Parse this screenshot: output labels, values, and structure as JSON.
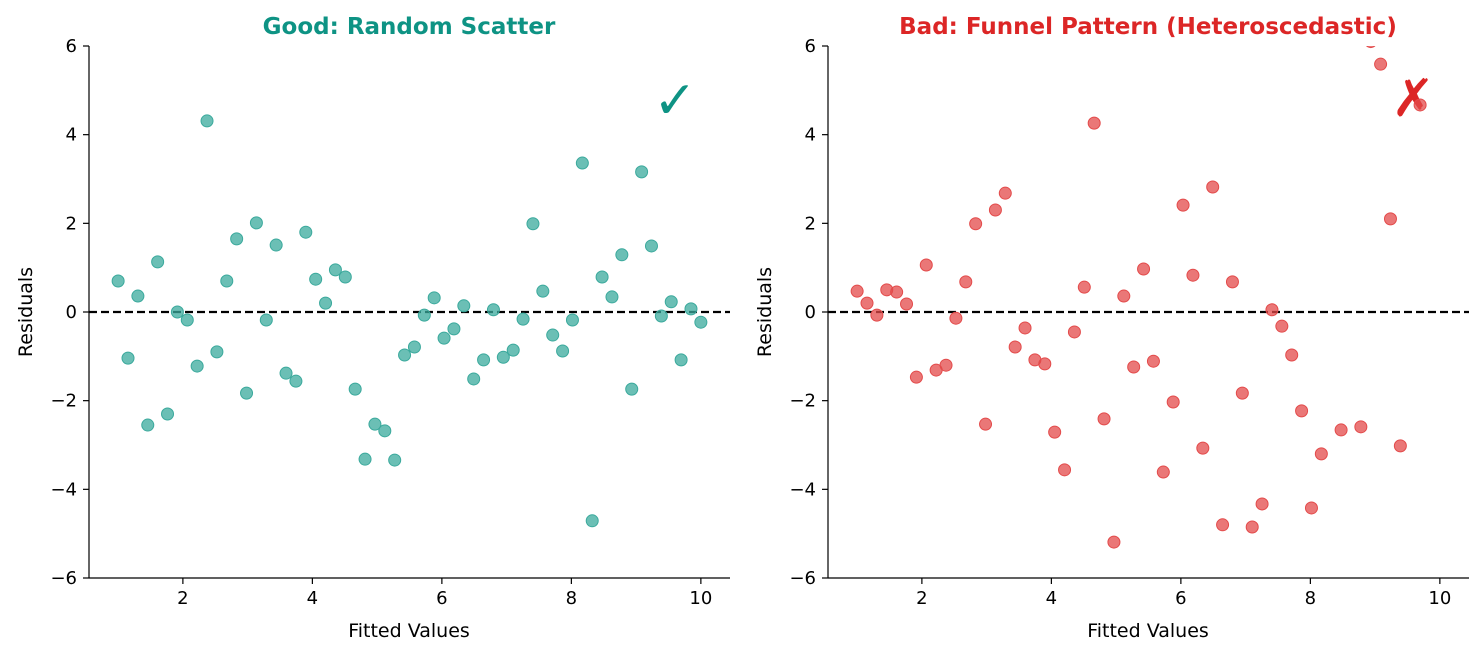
{
  "chart_data": [
    {
      "type": "scatter",
      "title": "Good: Random Scatter",
      "title_color": "#0e9384",
      "point_color": "#3aa99c",
      "xlabel": "Fitted Values",
      "ylabel": "Residuals",
      "xlim": [
        0.55,
        10.45
      ],
      "ylim": [
        -6,
        6
      ],
      "xticks": [
        2,
        4,
        6,
        8,
        10
      ],
      "yticks": [
        -6,
        -4,
        -2,
        0,
        2,
        4,
        6
      ],
      "grid": false,
      "reference_line": {
        "y": 0,
        "style": "dashed",
        "color": "#000000"
      },
      "annotation": {
        "text": "✓",
        "color": "#0e9384",
        "position": "top-right"
      },
      "x_range": [
        1,
        10
      ],
      "y": [
        0.7,
        -1.04,
        0.36,
        -2.55,
        1.13,
        -2.3,
        0.0,
        -0.18,
        -1.22,
        4.31,
        -0.9,
        0.7,
        1.65,
        -1.83,
        2.01,
        -0.18,
        1.51,
        -1.38,
        -1.56,
        1.8,
        0.74,
        0.2,
        0.95,
        0.79,
        -1.74,
        -3.32,
        -2.53,
        -2.68,
        -3.34,
        -0.97,
        -0.79,
        -0.07,
        0.32,
        -0.59,
        -0.38,
        0.14,
        -1.51,
        -1.08,
        0.05,
        -1.02,
        -0.86,
        -0.16,
        1.99,
        0.47,
        -0.52,
        -0.88,
        -0.18,
        3.36,
        -4.71,
        0.79,
        0.34,
        1.29,
        -1.74,
        3.16,
        1.49,
        -0.09,
        0.23,
        -1.08,
        0.07,
        -0.23
      ]
    },
    {
      "type": "scatter",
      "title": "Bad: Funnel Pattern (Heteroscedastic)",
      "title_color": "#dc2626",
      "point_color": "#e34a4a",
      "xlabel": "Fitted Values",
      "ylabel": "Residuals",
      "xlim": [
        0.55,
        10.45
      ],
      "ylim": [
        -6,
        6
      ],
      "xticks": [
        2,
        4,
        6,
        8,
        10
      ],
      "yticks": [
        -6,
        -4,
        -2,
        0,
        2,
        4,
        6
      ],
      "grid": false,
      "reference_line": {
        "y": 0,
        "style": "dashed",
        "color": "#000000"
      },
      "annotation": {
        "text": "✗",
        "color": "#dc2626",
        "position": "top-right"
      },
      "x_range": [
        1,
        10
      ],
      "y": [
        0.47,
        0.2,
        -0.07,
        0.5,
        0.45,
        0.18,
        -1.47,
        1.06,
        -1.31,
        -1.2,
        -0.14,
        0.68,
        1.99,
        -2.53,
        2.3,
        2.68,
        -0.79,
        -0.36,
        -1.08,
        -1.17,
        -2.71,
        -3.56,
        -0.45,
        0.56,
        4.26,
        -2.41,
        -5.19,
        0.36,
        -1.24,
        0.97,
        -1.11,
        -3.61,
        -2.03,
        2.41,
        0.83,
        -3.07,
        2.82,
        -4.8,
        0.68,
        -1.83,
        -4.85,
        -4.33,
        0.05,
        -0.32,
        -0.97,
        -2.23,
        -4.42,
        -3.2,
        null,
        -2.66,
        null,
        -2.59,
        6.1,
        5.59,
        2.1,
        -3.02,
        null,
        4.67,
        null,
        null
      ]
    }
  ]
}
